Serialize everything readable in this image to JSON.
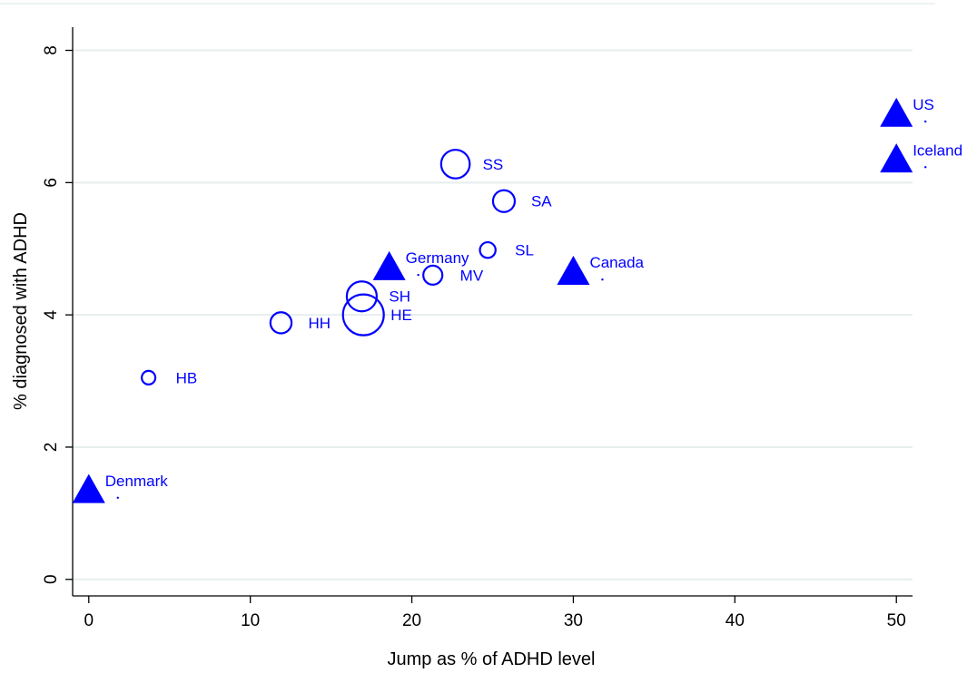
{
  "chart_data": {
    "type": "scatter",
    "title": "",
    "xlabel": "Jump as % of ADHD level",
    "ylabel": "% diagnosed with ADHD",
    "xlim": [
      -1,
      51
    ],
    "ylim": [
      -0.25,
      8.35
    ],
    "xticks": [
      0,
      10,
      20,
      30,
      40,
      50
    ],
    "yticks": [
      0,
      2,
      4,
      6,
      8
    ],
    "grid": "horizontal",
    "colors": {
      "marker": "#0000ff",
      "grid": "#e6eeee",
      "axis": "#000000"
    },
    "series": [
      {
        "marker": "circle",
        "points": [
          {
            "label": "HB",
            "x": 3.7,
            "y": 3.05,
            "size": 1.0
          },
          {
            "label": "HH",
            "x": 11.9,
            "y": 3.88,
            "size": 1.55
          },
          {
            "label": "SH",
            "x": 16.9,
            "y": 4.28,
            "size": 2.2
          },
          {
            "label": "HE",
            "x": 17.0,
            "y": 4.0,
            "size": 3.0
          },
          {
            "label": "MV",
            "x": 21.3,
            "y": 4.6,
            "size": 1.4
          },
          {
            "label": "SS",
            "x": 22.7,
            "y": 6.28,
            "size": 2.1
          },
          {
            "label": "SL",
            "x": 24.7,
            "y": 4.98,
            "size": 1.15
          },
          {
            "label": "SA",
            "x": 25.7,
            "y": 5.72,
            "size": 1.6
          }
        ]
      },
      {
        "marker": "triangle",
        "points": [
          {
            "label": "Denmark",
            "x": 0.0,
            "y": 1.33
          },
          {
            "label": "Germany",
            "x": 18.6,
            "y": 4.7
          },
          {
            "label": "Canada",
            "x": 30.0,
            "y": 4.63
          },
          {
            "label": "Iceland",
            "x": 50.0,
            "y": 6.33
          },
          {
            "label": "US",
            "x": 50.0,
            "y": 7.02
          }
        ]
      }
    ]
  }
}
